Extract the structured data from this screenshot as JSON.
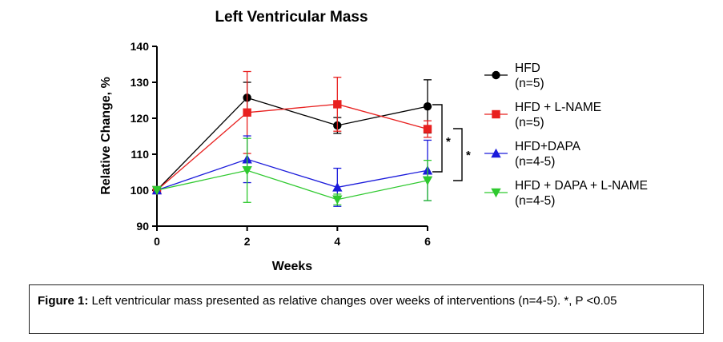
{
  "chart_data": {
    "type": "line",
    "title": "Left Ventricular Mass",
    "xlabel": "Weeks",
    "ylabel": "Relative Change, %",
    "x": [
      0,
      2,
      4,
      6
    ],
    "xticks": [
      "0",
      "2",
      "4",
      "6"
    ],
    "yticks": [
      "90",
      "100",
      "110",
      "120",
      "130",
      "140"
    ],
    "xlim": [
      0,
      6
    ],
    "ylim": [
      90,
      140
    ],
    "grid": false,
    "legend_position": "right",
    "series": [
      {
        "name": "HFD",
        "n_label": "(n=5)",
        "color": "#000000",
        "marker": "circle",
        "values": [
          100,
          125.7,
          118,
          123.3
        ],
        "errors": [
          0,
          4.3,
          2.2,
          7.4
        ]
      },
      {
        "name": "HFD + L-NAME",
        "n_label": "(n=5)",
        "color": "#e8201f",
        "marker": "square",
        "values": [
          100,
          121.6,
          123.9,
          117
        ],
        "errors": [
          0,
          11.4,
          7.5,
          2.3
        ]
      },
      {
        "name": "HFD+DAPA",
        "n_label": "(n=4-5)",
        "color": "#1a1adb",
        "marker": "triangle-up",
        "values": [
          100,
          108.6,
          100.8,
          105.5
        ],
        "errors": [
          0,
          6.5,
          5.3,
          8.4
        ]
      },
      {
        "name": "HFD + DAPA + L-NAME",
        "n_label": "(n=4-5)",
        "color": "#2fc92f",
        "marker": "triangle-down",
        "values": [
          100,
          105.5,
          97.4,
          102.7
        ],
        "errors": [
          0,
          8.9,
          1.5,
          5.6
        ]
      }
    ],
    "annotations": [
      "*",
      "*"
    ]
  },
  "caption": {
    "label": "Figure 1:",
    "text": " Left ventricular mass presented as relative changes over weeks of interventions (n=4-5). *, P <0.05"
  }
}
